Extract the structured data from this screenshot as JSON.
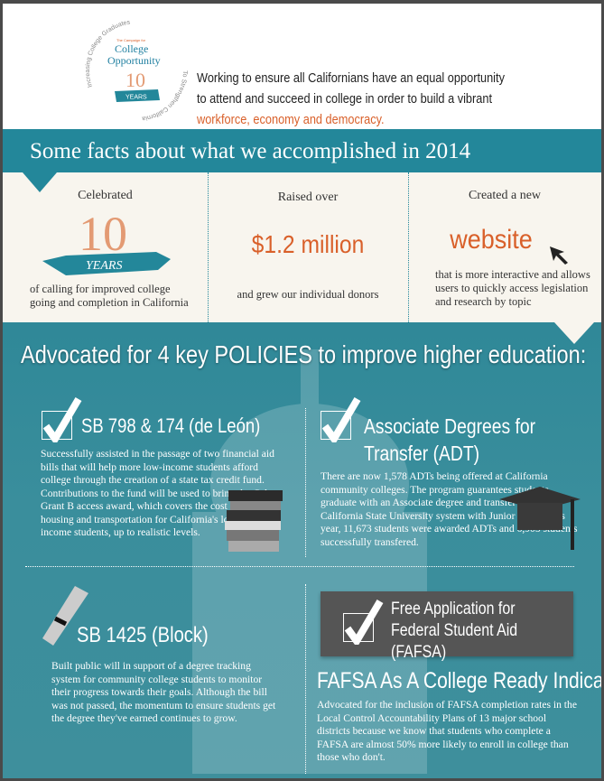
{
  "logo": {
    "top_arc": "Increasing College Graduates",
    "bottom_arc": "To Strengthen California",
    "kicker": "The Campaign for",
    "name_line1": "College",
    "name_line2": "Opportunity",
    "years_number": "10",
    "years_ribbon": "YEARS"
  },
  "header": {
    "mission_text": "Working to ensure all Californians have an equal opportunity to attend and succeed in college in order to build a vibrant",
    "mission_highlight": "workforce, economy and democracy."
  },
  "band": {
    "title": "Some facts about what we accomplished in 2014"
  },
  "facts": [
    {
      "label": "Celebrated",
      "big_number": "10",
      "ribbon": "YEARS",
      "description": "of calling for improved college going and completion in California"
    },
    {
      "label": "Raised over",
      "big": "$1.2 million",
      "description": "and grew our individual donors"
    },
    {
      "label": "Created a new",
      "big": "website",
      "description": "that is more interactive and allows users to quickly access legislation and research by topic",
      "icon": "cursor-arrow-icon"
    }
  ],
  "policies": {
    "title": "Advocated for 4 key POLICIES to improve higher education:",
    "items": [
      {
        "title": "SB 798 & 174 (de León)",
        "body": "Successfully assisted in the passage of two financial aid bills that will help more low-income students afford college through the creation of a state tax credit fund. Contributions to the fund will be used to bring the Cal Grant  B access award, which covers the cost of books, housing and transportation for California's lowest-income students, up to realistic levels.",
        "icon": "books-stack-icon"
      },
      {
        "title": "Associate Degrees for Transfer (ADT)",
        "body": "There are now 1,578 ADTs being offered at California community colleges. The program guarantees students graduate with an Associate degree and transfer to the California State University system with Junior status. This year, 11,673 students were awarded ADTs and 6,905 students successfully transfered.",
        "icon": "graduation-cap-icon"
      },
      {
        "title": "SB 1425 (Block)",
        "body": "Built public will in support of a degree tracking system for community college students to monitor their progress towards their goals. Although the bill was not passed, the momentum to ensure students get the degree they've earned continues to grow.",
        "icon": "diploma-scroll-icon"
      },
      {
        "box_title": "Free Application for Federal Student Aid (FAFSA)",
        "title": "FAFSA As A College Ready Indicator",
        "body": "Advocated for the inclusion of FAFSA completion rates in the Local Control Accountability Plans of 13 major school districts because we know that students who complete a FAFSA are almost 50% more likely to enroll in college than those who don't."
      }
    ]
  },
  "colors": {
    "teal": "#23879a",
    "orange": "#d9602a",
    "cream": "#f8f5ee",
    "dark_gray": "#555555"
  }
}
